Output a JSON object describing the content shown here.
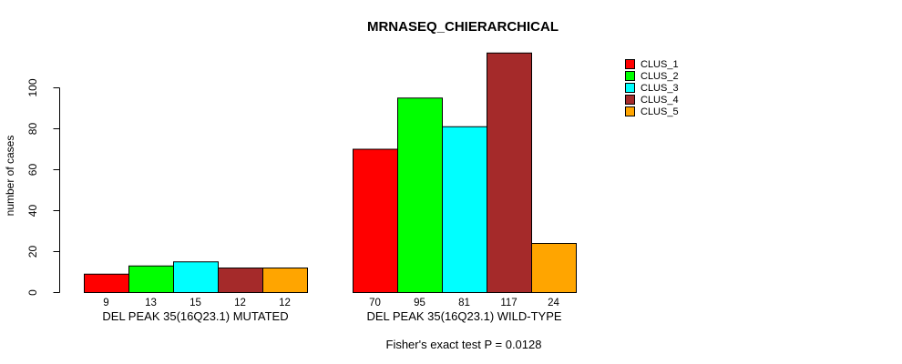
{
  "chart": {
    "title": "MRNASEQ_CHIERARCHICAL",
    "footer": "Fisher's exact test P = 0.0128"
  },
  "chart_data": {
    "type": "bar",
    "title": "MRNASEQ_CHIERARCHICAL",
    "xlabel": "",
    "ylabel": "number of cases",
    "annotation": "Fisher's exact test P = 0.0128",
    "categories": [
      "DEL PEAK 35(16Q23.1) MUTATED",
      "DEL PEAK 35(16Q23.1) WILD-TYPE"
    ],
    "series": [
      {
        "name": "CLUS_1",
        "color": "#FF0000",
        "values": [
          9,
          70
        ]
      },
      {
        "name": "CLUS_2",
        "color": "#00FF00",
        "values": [
          13,
          95
        ]
      },
      {
        "name": "CLUS_3",
        "color": "#00FFFF",
        "values": [
          15,
          81
        ]
      },
      {
        "name": "CLUS_4",
        "color": "#A52A2A",
        "values": [
          12,
          117
        ]
      },
      {
        "name": "CLUS_5",
        "color": "#FFA500",
        "values": [
          12,
          24
        ]
      }
    ],
    "bar_value_labels": [
      [
        "9",
        "13",
        "15",
        "12",
        "12"
      ],
      [
        "70",
        "95",
        "81",
        "117",
        "24"
      ]
    ],
    "yticks": [
      0,
      20,
      40,
      60,
      80,
      100
    ],
    "ylim": [
      0,
      117
    ],
    "grid": false,
    "legend_position": "right",
    "bar_border_color": "#000000",
    "axis_color": "#000000"
  }
}
